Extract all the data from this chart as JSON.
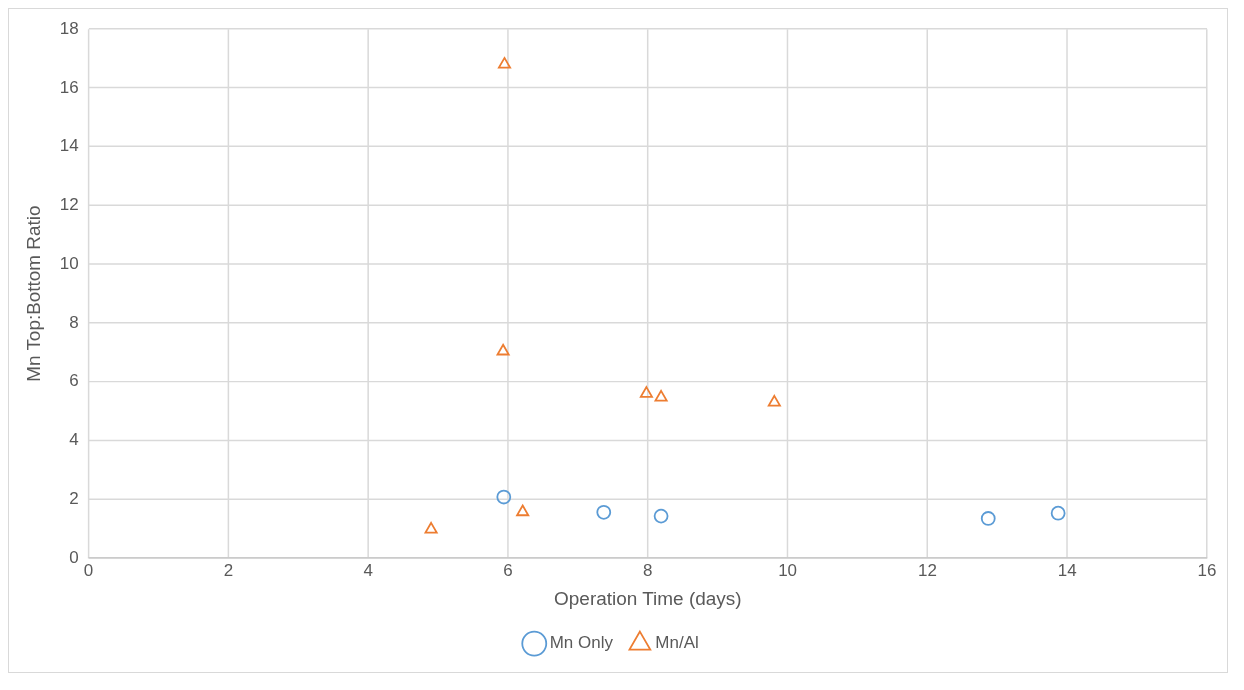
{
  "chart_data": {
    "type": "scatter",
    "xlabel": "Operation Time (days)",
    "ylabel": "Mn Top:Bottom Ratio",
    "xlim": [
      0,
      16
    ],
    "xticks": [
      0,
      2,
      4,
      6,
      8,
      10,
      12,
      14,
      16
    ],
    "ylim": [
      0,
      18
    ],
    "yticks": [
      0,
      2,
      4,
      6,
      8,
      10,
      12,
      14,
      16,
      18
    ],
    "grid": true,
    "legend": "bottom",
    "series": [
      {
        "name": "Mn Only",
        "color": "#5b9bd5",
        "marker": "circle",
        "x": [
          5.94,
          7.37,
          8.19,
          12.87,
          13.87
        ],
        "values": [
          2.08,
          1.56,
          1.43,
          1.35,
          1.53
        ]
      },
      {
        "name": "Mn/Al",
        "color": "#ed7d31",
        "marker": "triangle",
        "x": [
          4.9,
          5.95,
          5.93,
          6.21,
          7.98,
          8.19,
          9.81
        ],
        "values": [
          0.98,
          16.8,
          7.04,
          1.57,
          5.6,
          5.47,
          5.3
        ]
      }
    ]
  }
}
